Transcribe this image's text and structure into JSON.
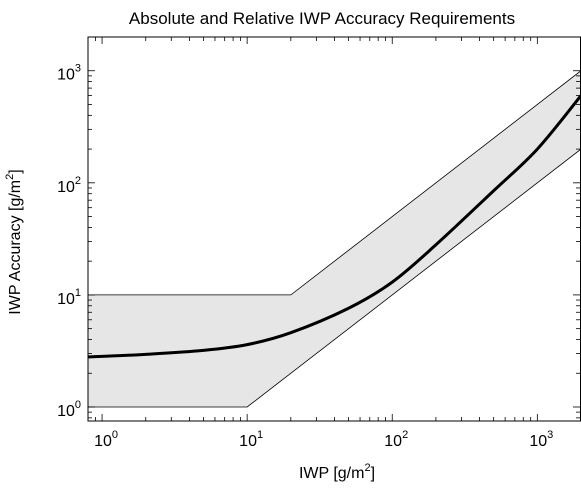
{
  "chart_data": {
    "type": "line",
    "title": "Absolute and Relative IWP Accuracy Requirements",
    "xlabel": {
      "base": "IWP [g/m",
      "sup": "2",
      "end": "]"
    },
    "ylabel": {
      "base": "IWP Accuracy [g/m",
      "sup": "2",
      "end": "]"
    },
    "xscale": "log",
    "yscale": "log",
    "xlim": [
      0.8,
      2000
    ],
    "ylim": [
      0.75,
      2000
    ],
    "x_ticks": [
      {
        "value": 1,
        "base": "10",
        "exp": "0"
      },
      {
        "value": 10,
        "base": "10",
        "exp": "1"
      },
      {
        "value": 100,
        "base": "10",
        "exp": "2"
      },
      {
        "value": 1000,
        "base": "10",
        "exp": "3"
      }
    ],
    "y_ticks": [
      {
        "value": 1,
        "base": "10",
        "exp": "0"
      },
      {
        "value": 10,
        "base": "10",
        "exp": "1"
      },
      {
        "value": 100,
        "base": "10",
        "exp": "2"
      },
      {
        "value": 1000,
        "base": "10",
        "exp": "3"
      }
    ],
    "band_upper": {
      "x": [
        0.8,
        20,
        2000
      ],
      "y": [
        10,
        10,
        1000
      ]
    },
    "band_lower": {
      "x": [
        0.8,
        10,
        2000
      ],
      "y": [
        1,
        1,
        200
      ]
    },
    "series": [
      {
        "x": [
          0.8,
          1,
          2,
          5,
          10,
          20,
          50,
          100,
          200,
          500,
          1000,
          2000
        ],
        "y": [
          2.8,
          2.83,
          2.95,
          3.2,
          3.6,
          4.6,
          7.6,
          13,
          28,
          85,
          200,
          600
        ]
      }
    ],
    "band_color": "#e6e6e6",
    "line_color": "#000000",
    "grid": false,
    "legend": "none"
  }
}
